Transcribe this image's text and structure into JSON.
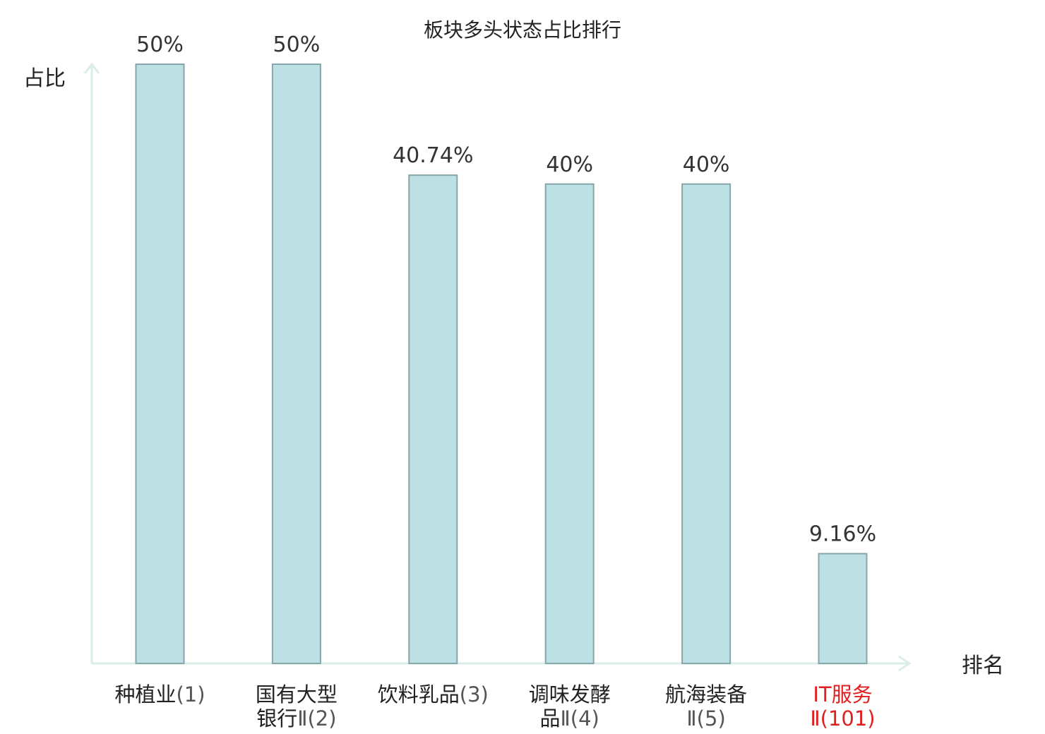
{
  "chart_data": {
    "type": "bar",
    "title": "板块多头状态占比排行",
    "ylabel": "占比",
    "xlabel": "排名",
    "ylim": [
      0,
      50
    ],
    "grid": false,
    "legend": "none",
    "categories": [
      {
        "line1": "种植业",
        "suffix1": "(1)",
        "line2": "",
        "suffix2": "",
        "highlight": false
      },
      {
        "line1": "国有大型",
        "suffix1": "",
        "line2": "银行",
        "suffix2": "Ⅱ(2)",
        "highlight": false
      },
      {
        "line1": "饮料乳品",
        "suffix1": "(3)",
        "line2": "",
        "suffix2": "",
        "highlight": false
      },
      {
        "line1": "调味发酵",
        "suffix1": "",
        "line2": "品",
        "suffix2": "Ⅱ(4)",
        "highlight": false
      },
      {
        "line1": "航海装备",
        "suffix1": "",
        "line2": "",
        "suffix2": "Ⅱ(5)",
        "highlight": false
      },
      {
        "line1": "IT服务",
        "suffix1": "",
        "line2": "",
        "suffix2": "Ⅱ(101)",
        "highlight": true
      }
    ],
    "values": [
      50,
      50,
      40.74,
      40,
      40,
      9.16
    ],
    "value_labels": [
      "50%",
      "50%",
      "40.74%",
      "40%",
      "40%",
      "9.16%"
    ],
    "colors": {
      "bar_fill": "#bce0e3",
      "bar_stroke": "#86a6aa",
      "axis": "#d9eeea",
      "text": "#222222",
      "suffix_text": "#555555",
      "highlight_text": "#e02020"
    }
  }
}
